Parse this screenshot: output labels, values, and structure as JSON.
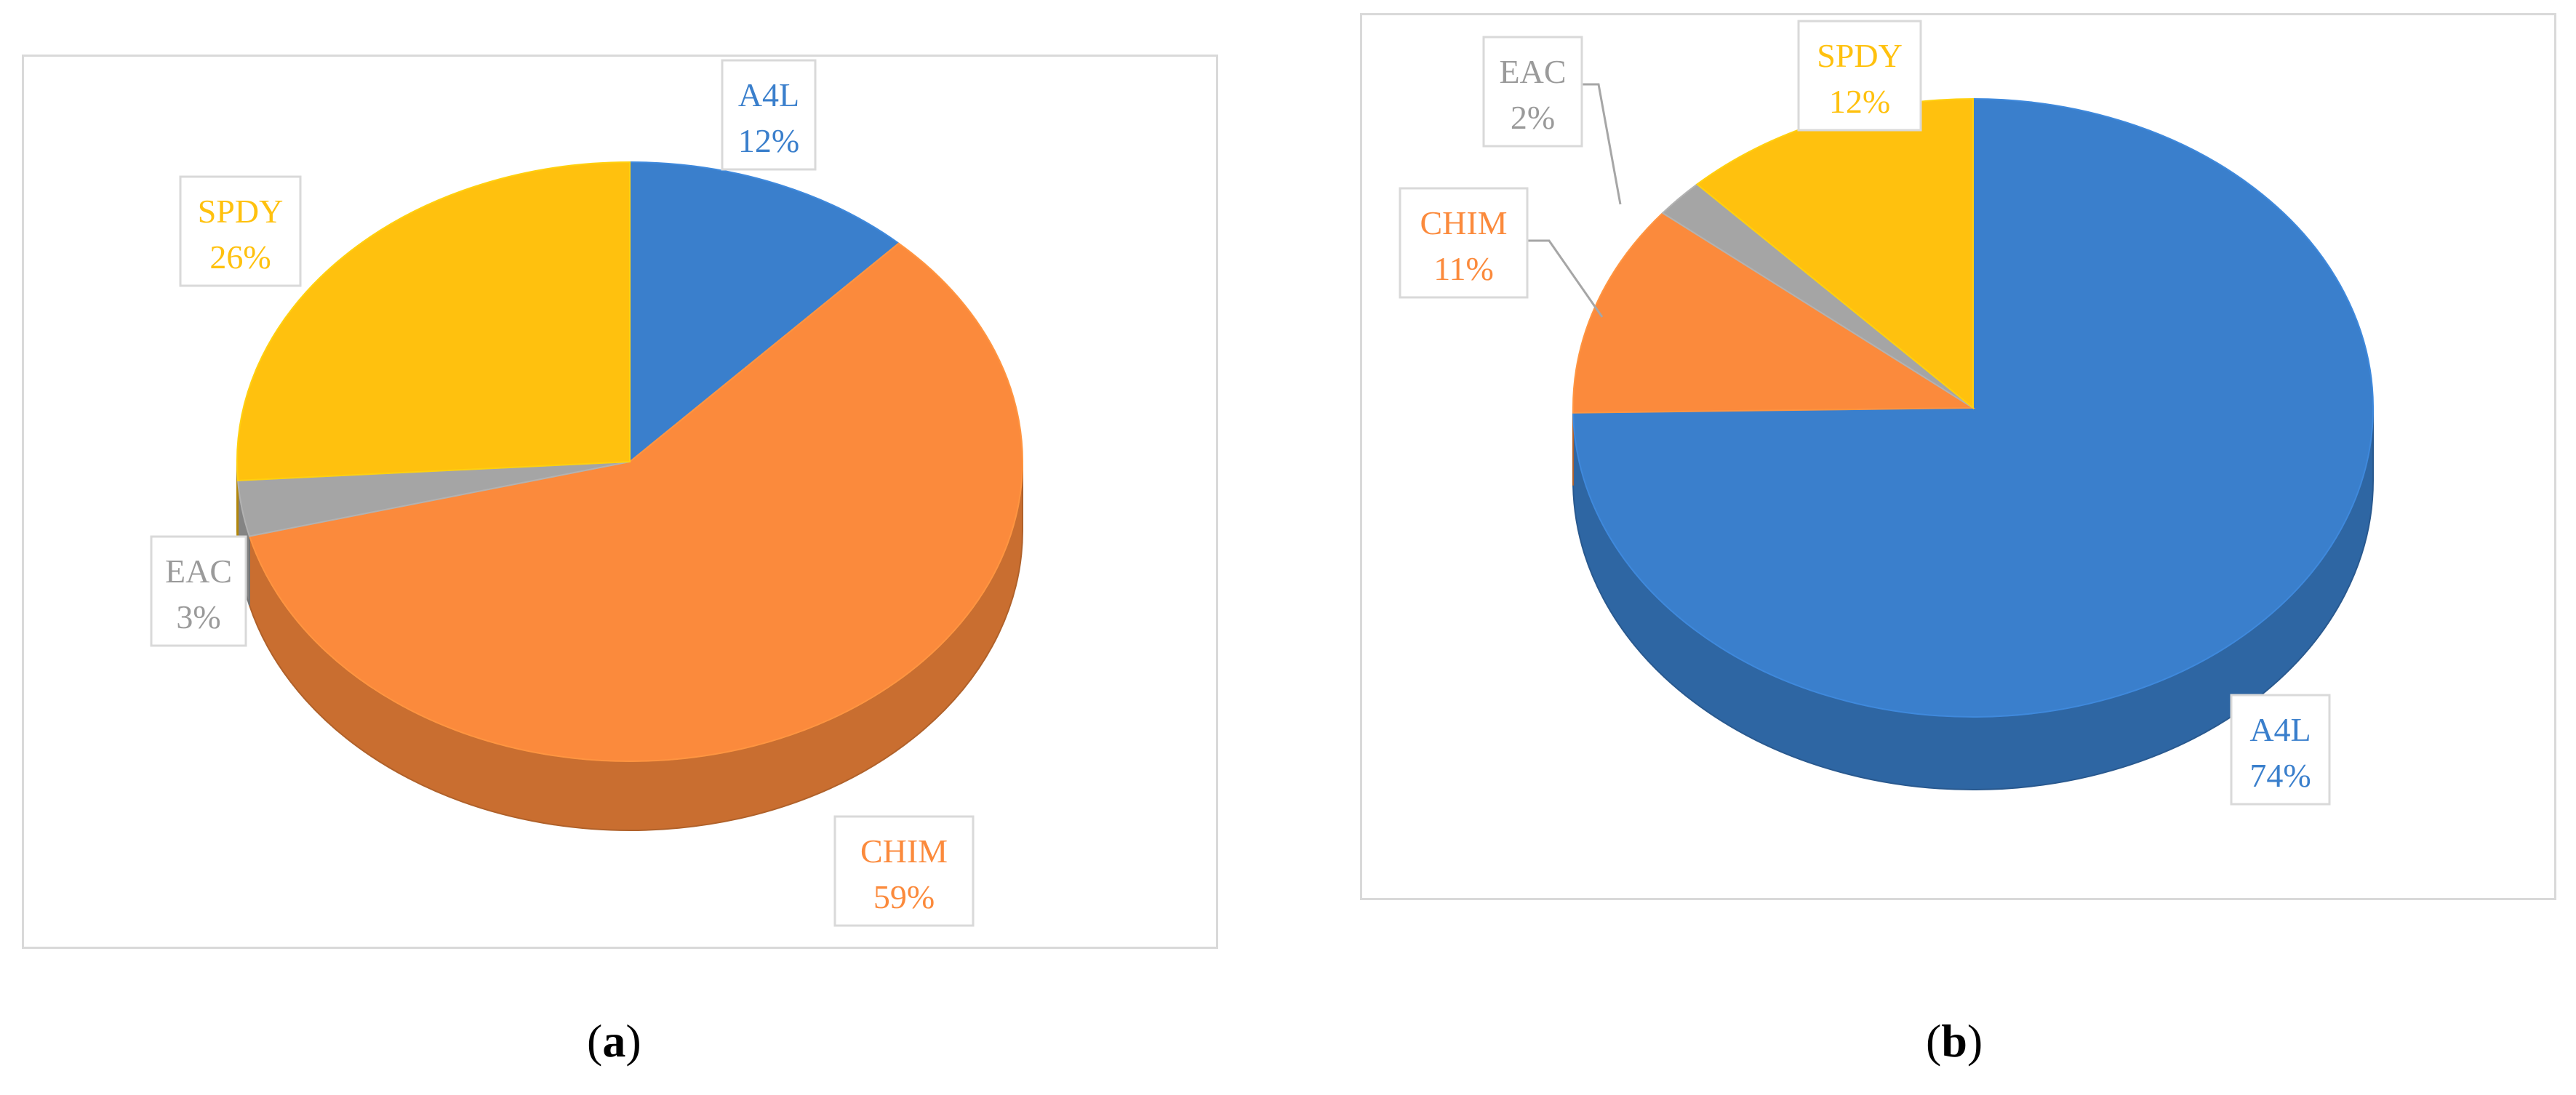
{
  "colors": {
    "A4L": "#3a7fcc",
    "CHIM": "#fb8a3c",
    "EAC": "#a5a5a5",
    "SPDY": "#ffc10e",
    "label_border": "#d9d9d9"
  },
  "captions": [
    {
      "open": "(",
      "letter": "a",
      "close": ")"
    },
    {
      "open": "(",
      "letter": "b",
      "close": ")"
    }
  ],
  "chart_data": [
    {
      "type": "pie",
      "style": "3d",
      "order": "clockwise from top",
      "slices": [
        {
          "name": "A4L",
          "percent_label": "12%",
          "value": 12
        },
        {
          "name": "CHIM",
          "percent_label": "59%",
          "value": 59
        },
        {
          "name": "EAC",
          "percent_label": "3%",
          "value": 3
        },
        {
          "name": "SPDY",
          "percent_label": "26%",
          "value": 26
        }
      ]
    },
    {
      "type": "pie",
      "style": "3d",
      "order": "clockwise from top",
      "slices": [
        {
          "name": "A4L",
          "percent_label": "74%",
          "value": 74
        },
        {
          "name": "CHIM",
          "percent_label": "11%",
          "value": 11
        },
        {
          "name": "EAC",
          "percent_label": "2%",
          "value": 2
        },
        {
          "name": "SPDY",
          "percent_label": "12%",
          "value": 12
        }
      ]
    }
  ]
}
